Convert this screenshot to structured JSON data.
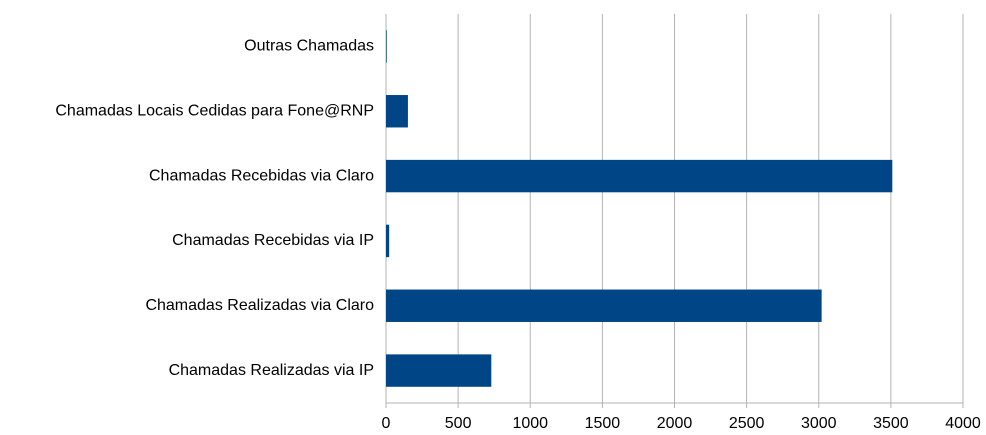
{
  "chart_data": {
    "type": "hbar",
    "categories": [
      "Outras Chamadas",
      "Chamadas Locais Cedidas para Fone@RNP",
      "Chamadas Recebidas via Claro",
      "Chamadas Recebidas via IP",
      "Chamadas Realizadas via Claro",
      "Chamadas Realizadas via IP"
    ],
    "values": [
      5,
      152,
      3510,
      22,
      3020,
      730
    ],
    "color": "#004586",
    "xlim": [
      0,
      4000
    ],
    "xticks": [
      0,
      500,
      1000,
      1500,
      2000,
      2500,
      3000,
      3500,
      4000
    ],
    "grid": true
  }
}
